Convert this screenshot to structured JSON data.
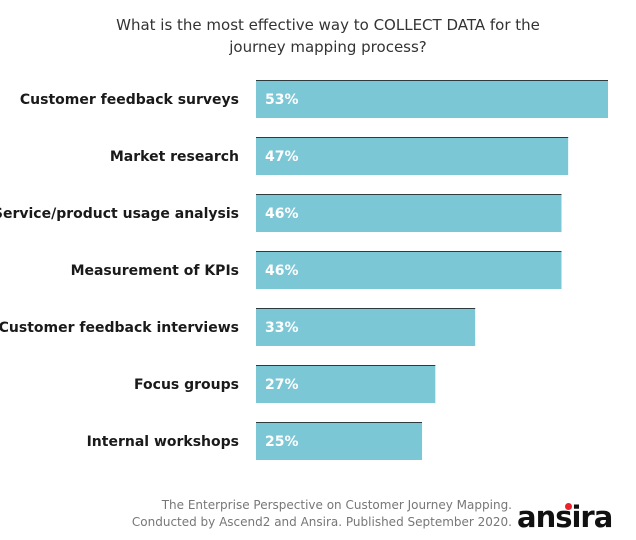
{
  "chart_data": {
    "type": "bar",
    "orientation": "horizontal",
    "title_lines": [
      "What is the most effective way to COLLECT DATA for the",
      "journey mapping process?"
    ],
    "categories": [
      "Customer feedback surveys",
      "Market research",
      "Service/product usage analysis",
      "Measurement of KPIs",
      "Customer feedback interviews",
      "Focus groups",
      "Internal workshops"
    ],
    "values": [
      53,
      47,
      46,
      46,
      33,
      27,
      25
    ],
    "value_labels": [
      "53%",
      "47%",
      "46%",
      "46%",
      "33%",
      "27%",
      "25%"
    ],
    "unit": "%",
    "xlim": [
      0,
      53
    ],
    "grid": false,
    "legend": "none",
    "bar_color": "#7cc7d6",
    "bar_edge_color": "#2d3a3e"
  },
  "footer": {
    "line1": "The Enterprise Perspective on Customer Journey Mapping.",
    "line2": "Conducted by Ascend2 and Ansira. Published September 2020."
  },
  "logo": {
    "text": "ansira",
    "accent_color": "#e8232b"
  }
}
